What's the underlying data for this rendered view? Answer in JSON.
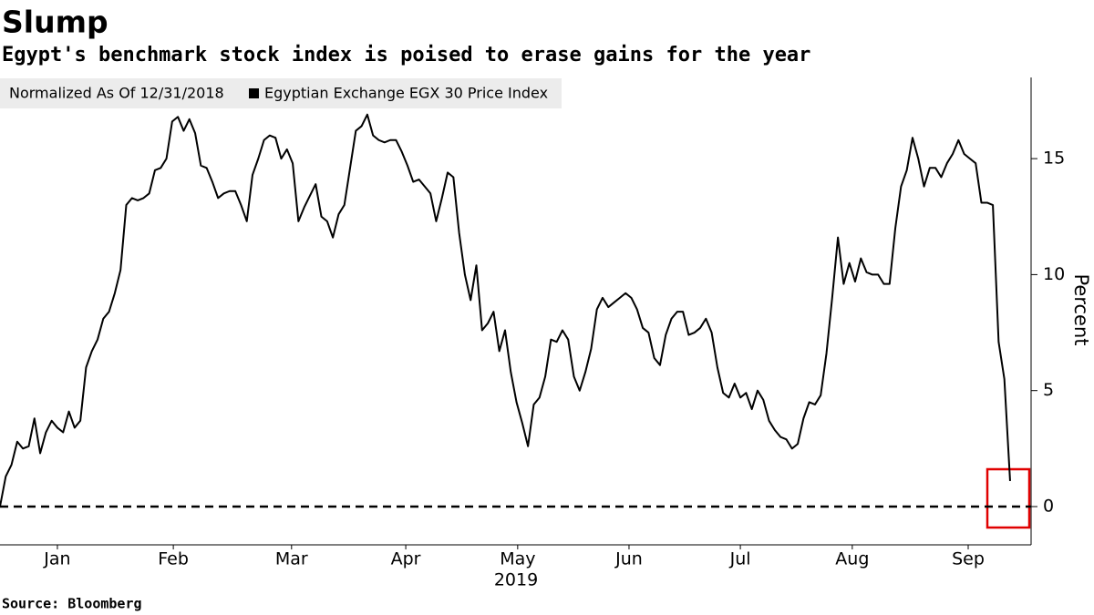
{
  "chart_data": {
    "type": "line",
    "title": "Slump",
    "subtitle": "Egypt's benchmark stock index is poised to erase gains for the year",
    "legend_note": "Normalized As Of 12/31/2018",
    "source": "Source: Bloomberg",
    "y_label": "Percent",
    "year_label": "2019",
    "series": [
      {
        "name": "Egyptian Exchange EGX 30 Price Index",
        "color": "#000000",
        "values": [
          0,
          1.3,
          1.8,
          2.8,
          2.5,
          2.6,
          3.8,
          2.3,
          3.2,
          3.7,
          3.4,
          3.2,
          4.1,
          3.4,
          3.7,
          6.0,
          6.7,
          7.2,
          8.1,
          8.4,
          9.2,
          10.2,
          13.0,
          13.3,
          13.2,
          13.3,
          13.5,
          14.5,
          14.6,
          15.0,
          16.6,
          16.8,
          16.2,
          16.7,
          16.1,
          14.7,
          14.6,
          14.0,
          13.3,
          13.5,
          13.6,
          13.6,
          13.0,
          12.3,
          14.3,
          15.0,
          15.8,
          16.0,
          15.9,
          15.0,
          15.4,
          14.8,
          12.3,
          12.9,
          13.4,
          13.9,
          12.5,
          12.3,
          11.6,
          12.6,
          13.0,
          14.6,
          16.2,
          16.4,
          16.9,
          16.0,
          15.8,
          15.7,
          15.8,
          15.8,
          15.3,
          14.7,
          14.0,
          14.1,
          13.8,
          13.5,
          12.3,
          13.3,
          14.4,
          14.2,
          11.8,
          10.0,
          8.9,
          10.4,
          7.6,
          7.9,
          8.4,
          6.7,
          7.6,
          5.8,
          4.5,
          3.6,
          2.6,
          4.4,
          4.7,
          5.6,
          7.2,
          7.1,
          7.6,
          7.2,
          5.6,
          5.0,
          5.8,
          6.8,
          8.5,
          9.0,
          8.6,
          8.8,
          9.0,
          9.2,
          9.0,
          8.5,
          7.7,
          7.5,
          6.4,
          6.1,
          7.4,
          8.1,
          8.4,
          8.4,
          7.4,
          7.5,
          7.7,
          8.1,
          7.5,
          6.0,
          4.9,
          4.7,
          5.3,
          4.7,
          4.9,
          4.2,
          5.0,
          4.6,
          3.7,
          3.3,
          3.0,
          2.9,
          2.5,
          2.7,
          3.8,
          4.5,
          4.4,
          4.8,
          6.6,
          9.0,
          11.6,
          9.6,
          10.5,
          9.7,
          10.7,
          10.1,
          10.0,
          10.0,
          9.6,
          9.6,
          12.0,
          13.8,
          14.5,
          15.9,
          15.0,
          13.8,
          14.6,
          14.6,
          14.2,
          14.8,
          15.2,
          15.8,
          15.2,
          15.0,
          14.8,
          13.1,
          13.1,
          13.0,
          7.1,
          5.5,
          1.1
        ]
      }
    ],
    "reference_line": 0,
    "xlim": [
      0,
      179.5
    ],
    "xticks": [
      {
        "value": 10,
        "label": "Jan"
      },
      {
        "value": 30.2,
        "label": "Feb"
      },
      {
        "value": 50.8,
        "label": "Mar"
      },
      {
        "value": 70.7,
        "label": "Apr"
      },
      {
        "value": 90.2,
        "label": "May"
      },
      {
        "value": 109.6,
        "label": "Jun"
      },
      {
        "value": 129,
        "label": "Jul"
      },
      {
        "value": 148.5,
        "label": "Aug"
      },
      {
        "value": 168.7,
        "label": "Sep"
      }
    ],
    "ylim": [
      -1.65,
      18.5
    ],
    "yticks": [
      0,
      5,
      10,
      15
    ],
    "grid": false
  }
}
